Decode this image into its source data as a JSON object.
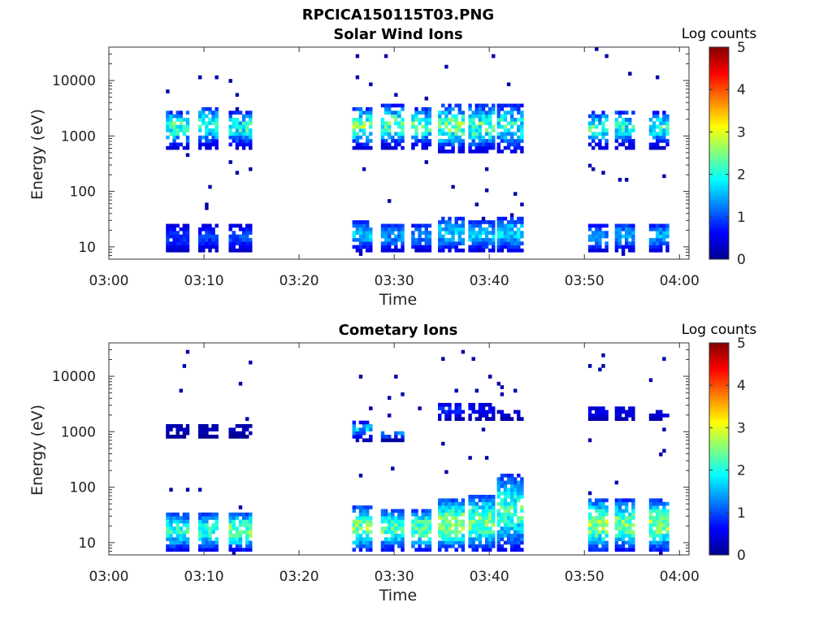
{
  "figure": {
    "title": "RPCICA150115T03.PNG"
  },
  "colors": {
    "jet_scale": [
      "#00008f",
      "#0000ff",
      "#0080ff",
      "#00ffff",
      "#80ff80",
      "#ffff00",
      "#ff8000",
      "#ff0000",
      "#800000"
    ]
  },
  "chart_data": [
    {
      "type": "heatmap",
      "title": "Solar Wind Ions",
      "xlabel": "Time",
      "ylabel": "Energy (eV)",
      "x_ticks": [
        "03:00",
        "03:10",
        "03:20",
        "03:30",
        "03:40",
        "03:50",
        "04:00"
      ],
      "xlim_minutes": [
        0,
        61
      ],
      "y_scale": "log",
      "y_ticks": [
        "10",
        "100",
        "1000",
        "10000"
      ],
      "ylim": [
        6,
        40000
      ],
      "colorbar": {
        "label": "Log counts",
        "ticks": [
          "0",
          "1",
          "2",
          "3",
          "4",
          "5"
        ],
        "range": [
          0,
          5
        ]
      },
      "grid": false,
      "bursts": [
        {
          "t": [
            6.0,
            8.2
          ],
          "high_energy": [
            600,
            3000
          ],
          "high_peak": 2.6,
          "low_energy": [
            8,
            25
          ],
          "low_peak": 1.0
        },
        {
          "t": [
            9.4,
            11.2
          ],
          "high_energy": [
            600,
            3500
          ],
          "high_peak": 2.4,
          "low_energy": [
            8,
            25
          ],
          "low_peak": 1.0
        },
        {
          "t": [
            12.6,
            14.8
          ],
          "high_energy": [
            600,
            3000
          ],
          "high_peak": 2.3,
          "low_energy": [
            8,
            25
          ],
          "low_peak": 1.1
        },
        {
          "t": [
            25.6,
            27.6
          ],
          "high_energy": [
            600,
            3500
          ],
          "high_peak": 2.8,
          "low_energy": [
            8,
            30
          ],
          "low_peak": 1.7
        },
        {
          "t": [
            28.6,
            30.8
          ],
          "high_energy": [
            600,
            4000
          ],
          "high_peak": 2.5,
          "low_energy": [
            8,
            28
          ],
          "low_peak": 1.5
        },
        {
          "t": [
            31.8,
            33.6
          ],
          "high_energy": [
            600,
            3500
          ],
          "high_peak": 2.5,
          "low_energy": [
            8,
            28
          ],
          "low_peak": 1.4
        },
        {
          "t": [
            34.6,
            37.2
          ],
          "high_energy": [
            500,
            4000
          ],
          "high_peak": 2.7,
          "low_energy": [
            8,
            35
          ],
          "low_peak": 1.8
        },
        {
          "t": [
            37.8,
            40.6
          ],
          "high_energy": [
            500,
            4000
          ],
          "high_peak": 2.6,
          "low_energy": [
            8,
            30
          ],
          "low_peak": 1.8
        },
        {
          "t": [
            40.8,
            43.6
          ],
          "high_energy": [
            500,
            4000
          ],
          "high_peak": 2.3,
          "low_energy": [
            8,
            35
          ],
          "low_peak": 1.9
        },
        {
          "t": [
            50.4,
            52.2
          ],
          "high_energy": [
            600,
            3000
          ],
          "high_peak": 2.4,
          "low_energy": [
            8,
            25
          ],
          "low_peak": 1.5
        },
        {
          "t": [
            53.2,
            55.0
          ],
          "high_energy": [
            600,
            3000
          ],
          "high_peak": 2.3,
          "low_energy": [
            8,
            28
          ],
          "low_peak": 1.6
        },
        {
          "t": [
            56.8,
            58.8
          ],
          "high_energy": [
            600,
            3000
          ],
          "high_peak": 2.2,
          "low_energy": [
            8,
            28
          ],
          "low_peak": 1.6
        }
      ]
    },
    {
      "type": "heatmap",
      "title": "Cometary Ions",
      "xlabel": "Time",
      "ylabel": "Energy (eV)",
      "x_ticks": [
        "03:00",
        "03:10",
        "03:20",
        "03:30",
        "03:40",
        "03:50",
        "04:00"
      ],
      "xlim_minutes": [
        0,
        61
      ],
      "y_scale": "log",
      "y_ticks": [
        "10",
        "100",
        "1000",
        "10000"
      ],
      "ylim": [
        6,
        40000
      ],
      "colorbar": {
        "label": "Log counts",
        "ticks": [
          "0",
          "1",
          "2",
          "3",
          "4",
          "5"
        ],
        "range": [
          0,
          5
        ]
      },
      "grid": false,
      "bursts": [
        {
          "t": [
            6.0,
            8.2
          ],
          "high_energy": [
            800,
            1400
          ],
          "high_peak": 0.3,
          "low_energy": [
            7,
            35
          ],
          "low_peak": 2.3
        },
        {
          "t": [
            9.4,
            11.2
          ],
          "high_energy": [
            800,
            1300
          ],
          "high_peak": 0.3,
          "low_energy": [
            7,
            35
          ],
          "low_peak": 2.3
        },
        {
          "t": [
            12.6,
            14.8
          ],
          "high_energy": [
            800,
            1300
          ],
          "high_peak": 0.3,
          "low_energy": [
            7,
            35
          ],
          "low_peak": 2.6
        },
        {
          "t": [
            25.6,
            27.6
          ],
          "high_energy": [
            700,
            1500
          ],
          "high_peak": 1.8,
          "low_energy": [
            7,
            45
          ],
          "low_peak": 2.8
        },
        {
          "t": [
            28.6,
            30.8
          ],
          "high_energy": [
            700,
            1000
          ],
          "high_peak": 1.5,
          "low_energy": [
            7,
            40
          ],
          "low_peak": 2.5
        },
        {
          "t": [
            31.8,
            33.6
          ],
          "high_energy": [
            0,
            0
          ],
          "high_peak": 0,
          "low_energy": [
            7,
            40
          ],
          "low_peak": 2.6
        },
        {
          "t": [
            34.6,
            37.2
          ],
          "high_energy": [
            1500,
            3500
          ],
          "high_peak": 0.9,
          "low_energy": [
            7,
            60
          ],
          "low_peak": 2.9
        },
        {
          "t": [
            37.8,
            40.6
          ],
          "high_energy": [
            1500,
            3500
          ],
          "high_peak": 0.7,
          "low_energy": [
            7,
            70
          ],
          "low_peak": 2.7
        },
        {
          "t": [
            40.8,
            43.6
          ],
          "high_energy": [
            1500,
            2500
          ],
          "high_peak": 0.5,
          "low_energy": [
            7,
            180
          ],
          "low_peak": 2.4
        },
        {
          "t": [
            50.4,
            52.2
          ],
          "high_energy": [
            1500,
            3000
          ],
          "high_peak": 0.6,
          "low_energy": [
            7,
            60
          ],
          "low_peak": 2.9
        },
        {
          "t": [
            53.2,
            55.0
          ],
          "high_energy": [
            1500,
            3000
          ],
          "high_peak": 0.6,
          "low_energy": [
            7,
            60
          ],
          "low_peak": 2.7
        },
        {
          "t": [
            56.8,
            58.8
          ],
          "high_energy": [
            1500,
            2500
          ],
          "high_peak": 0.5,
          "low_energy": [
            7,
            60
          ],
          "low_peak": 2.8
        }
      ]
    }
  ]
}
